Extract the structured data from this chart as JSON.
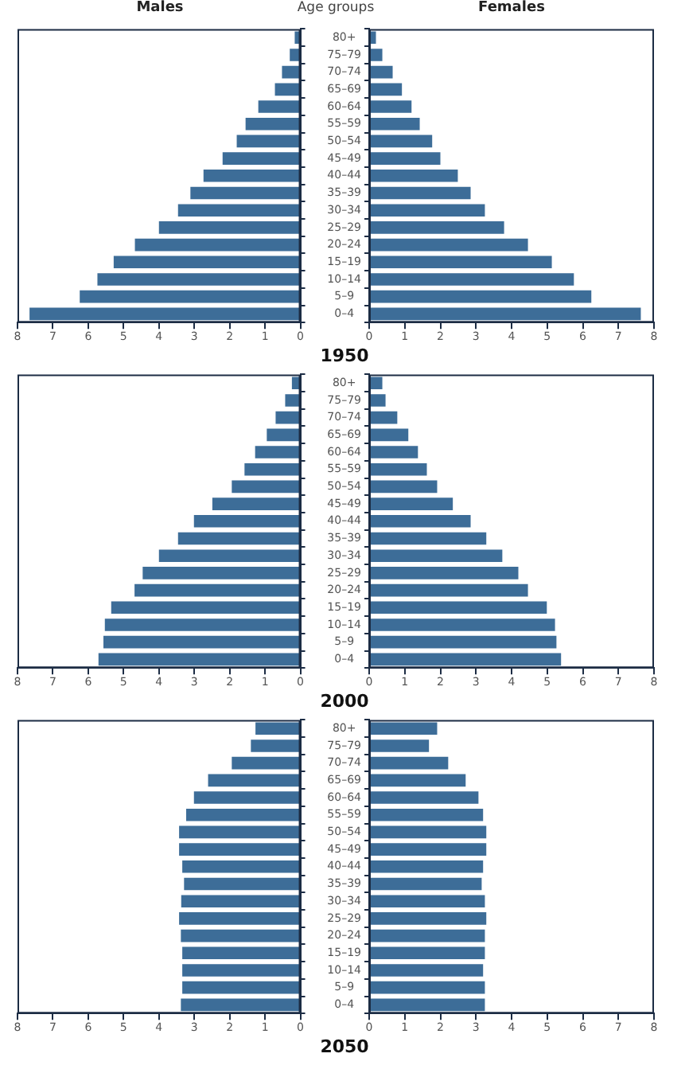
{
  "chart_data": [
    {
      "type": "bar",
      "orientation": "horizontal",
      "title": "Males",
      "categories": [
        null,
        null,
        null,
        null,
        null,
        null,
        null,
        null,
        null,
        null,
        null,
        null,
        null,
        null,
        null,
        null,
        null
      ],
      "values": [
        0.16,
        0.3,
        0.52,
        0.72,
        1.19,
        1.55,
        1.8,
        2.2,
        2.74,
        3.11,
        3.46,
        4.0,
        4.68,
        5.28,
        5.74,
        6.24,
        7.66
      ],
      "color": "#3d6d98",
      "xlim": [
        8,
        0
      ],
      "xticks": [
        8,
        7,
        6,
        5,
        4,
        3,
        2,
        1,
        0
      ]
    },
    {
      "type": "bar",
      "orientation": "horizontal",
      "title": "Females",
      "ylabel": "Age groups",
      "xlabel": "1950",
      "categories": [
        "80+",
        "75–79",
        "70–74",
        "65–69",
        "60–64",
        "55–59",
        "50–54",
        "45–49",
        "40–44",
        "35–39",
        "30–34",
        "25–29",
        "20–24",
        "15–19",
        "10–14",
        "5–9",
        "0–4"
      ],
      "values": [
        0.19,
        0.37,
        0.66,
        0.92,
        1.19,
        1.42,
        1.77,
        2.0,
        2.49,
        2.85,
        3.25,
        3.79,
        4.46,
        5.13,
        5.75,
        6.24,
        7.63
      ],
      "color": "#3d6d98",
      "xlim": [
        0,
        8
      ],
      "xticks": [
        0,
        1,
        2,
        3,
        4,
        5,
        6,
        7,
        8
      ]
    },
    {
      "type": "bar",
      "orientation": "horizontal",
      "categories": [
        null,
        null,
        null,
        null,
        null,
        null,
        null,
        null,
        null,
        null,
        null,
        null,
        null,
        null,
        null,
        null,
        null
      ],
      "values": [
        0.24,
        0.43,
        0.7,
        0.95,
        1.28,
        1.58,
        1.94,
        2.49,
        3.01,
        3.46,
        4.0,
        4.46,
        4.69,
        5.35,
        5.53,
        5.57,
        5.71
      ],
      "color": "#3d6d98",
      "xlim": [
        8,
        0
      ],
      "xticks": [
        8,
        7,
        6,
        5,
        4,
        3,
        2,
        1,
        0
      ]
    },
    {
      "type": "bar",
      "orientation": "horizontal",
      "xlabel": "2000",
      "categories": [
        "80+",
        "75–79",
        "70–74",
        "65–69",
        "60–64",
        "55–59",
        "50–54",
        "45–49",
        "40–44",
        "35–39",
        "30–34",
        "25–29",
        "20–24",
        "15–19",
        "10–14",
        "5–9",
        "0–4"
      ],
      "values": [
        0.37,
        0.46,
        0.79,
        1.1,
        1.37,
        1.62,
        1.91,
        2.35,
        2.85,
        3.29,
        3.74,
        4.19,
        4.46,
        4.99,
        5.22,
        5.26,
        5.39
      ],
      "color": "#3d6d98",
      "xlim": [
        0,
        8
      ],
      "xticks": [
        0,
        1,
        2,
        3,
        4,
        5,
        6,
        7,
        8
      ]
    },
    {
      "type": "bar",
      "orientation": "horizontal",
      "categories": [
        null,
        null,
        null,
        null,
        null,
        null,
        null,
        null,
        null,
        null,
        null,
        null,
        null,
        null,
        null,
        null,
        null
      ],
      "values": [
        1.27,
        1.4,
        1.94,
        2.61,
        3.01,
        3.23,
        3.43,
        3.43,
        3.34,
        3.29,
        3.37,
        3.43,
        3.38,
        3.34,
        3.34,
        3.34,
        3.38
      ],
      "color": "#3d6d98",
      "xlim": [
        8,
        0
      ],
      "xticks": [
        8,
        7,
        6,
        5,
        4,
        3,
        2,
        1,
        0
      ]
    },
    {
      "type": "bar",
      "orientation": "horizontal",
      "xlabel": "2050",
      "categories": [
        "80+",
        "75–79",
        "70–74",
        "65–69",
        "60–64",
        "55–59",
        "50–54",
        "45–49",
        "40–44",
        "35–39",
        "30–34",
        "25–29",
        "20–24",
        "15–19",
        "10–14",
        "5–9",
        "0–4"
      ],
      "values": [
        1.91,
        1.68,
        2.22,
        2.71,
        3.07,
        3.2,
        3.29,
        3.29,
        3.2,
        3.16,
        3.25,
        3.29,
        3.25,
        3.25,
        3.2,
        3.25,
        3.25
      ],
      "color": "#3d6d98",
      "xlim": [
        0,
        8
      ],
      "xticks": [
        0,
        1,
        2,
        3,
        4,
        5,
        6,
        7,
        8
      ]
    }
  ]
}
